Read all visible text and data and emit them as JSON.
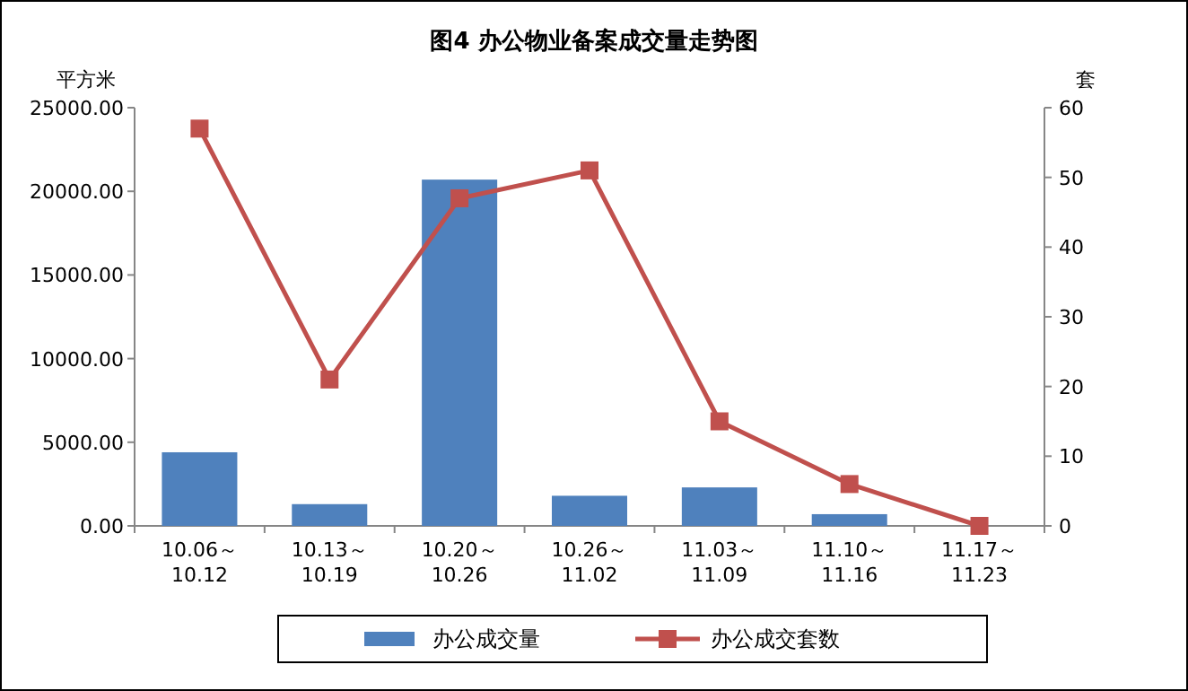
{
  "chart_data": {
    "type": "bar",
    "title": "图4   办公物业备案成交量走势图",
    "ylabel": "平方米",
    "y2label": "套",
    "categories": [
      "10.06～10.12",
      "10.13～10.19",
      "10.20～10.26",
      "10.26～11.02",
      "11.03～11.09",
      "11.10～11.16",
      "11.17～11.23"
    ],
    "series": [
      {
        "name": "办公成交量",
        "color": "#4f81bd",
        "values": [
          4400,
          1300,
          20700,
          1800,
          2300,
          700,
          0
        ]
      },
      {
        "name": "办公成交套数",
        "type": "line",
        "axis": "y2",
        "color": "#c0504d",
        "marker": "square",
        "values": [
          57,
          21,
          47,
          51,
          15,
          6,
          0
        ]
      }
    ],
    "ylim": [
      0,
      25000
    ],
    "yticks": [
      {
        "value": 0,
        "label": "0.00"
      },
      {
        "value": 5000,
        "label": "5000.00"
      },
      {
        "value": 10000,
        "label": "10000.00"
      },
      {
        "value": 15000,
        "label": "15000.00"
      },
      {
        "value": 20000,
        "label": "20000.00"
      },
      {
        "value": 25000,
        "label": "25000.00"
      }
    ],
    "y2lim": [
      0,
      60
    ],
    "y2ticks": [
      0,
      10,
      20,
      30,
      40,
      50,
      60
    ],
    "legend": "bottom"
  }
}
